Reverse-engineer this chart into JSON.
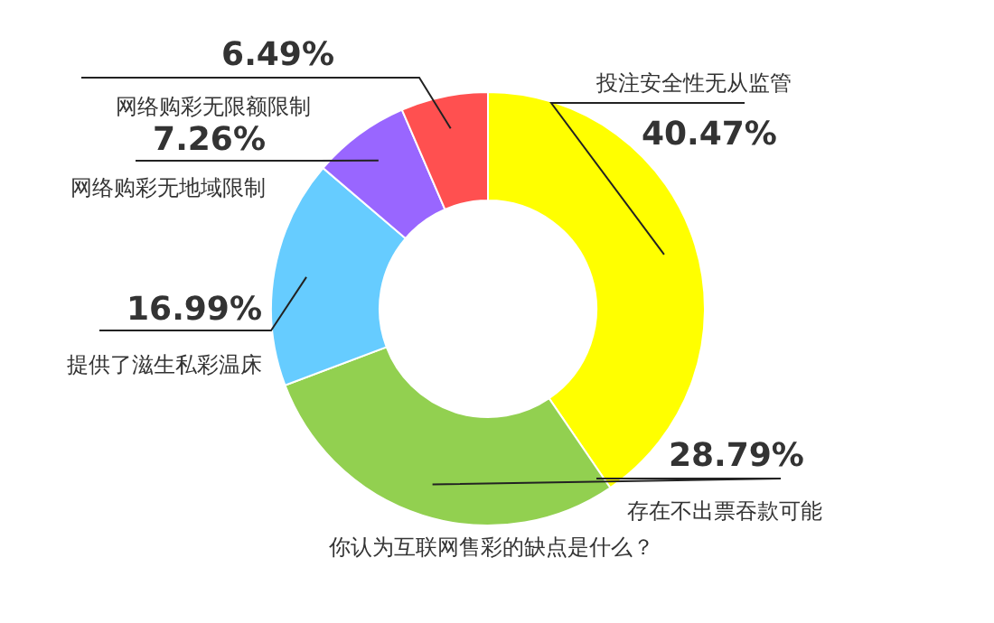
{
  "chart_data": {
    "type": "donut",
    "title": "你认为互联网售彩的缺点是什么？",
    "categories": [
      "投注安全性无从监管",
      "存在不出票吞款可能",
      "提供了滋生私彩温床",
      "网络购彩无地域限制",
      "网络购彩无限额限制"
    ],
    "values": [
      40.47,
      28.79,
      16.99,
      7.26,
      6.49
    ],
    "value_labels": [
      "40.47%",
      "28.79%",
      "16.99%",
      "7.26%",
      "6.49%"
    ],
    "colors": [
      "#ffff00",
      "#92d050",
      "#66ccff",
      "#9966ff",
      "#ff5050"
    ]
  }
}
